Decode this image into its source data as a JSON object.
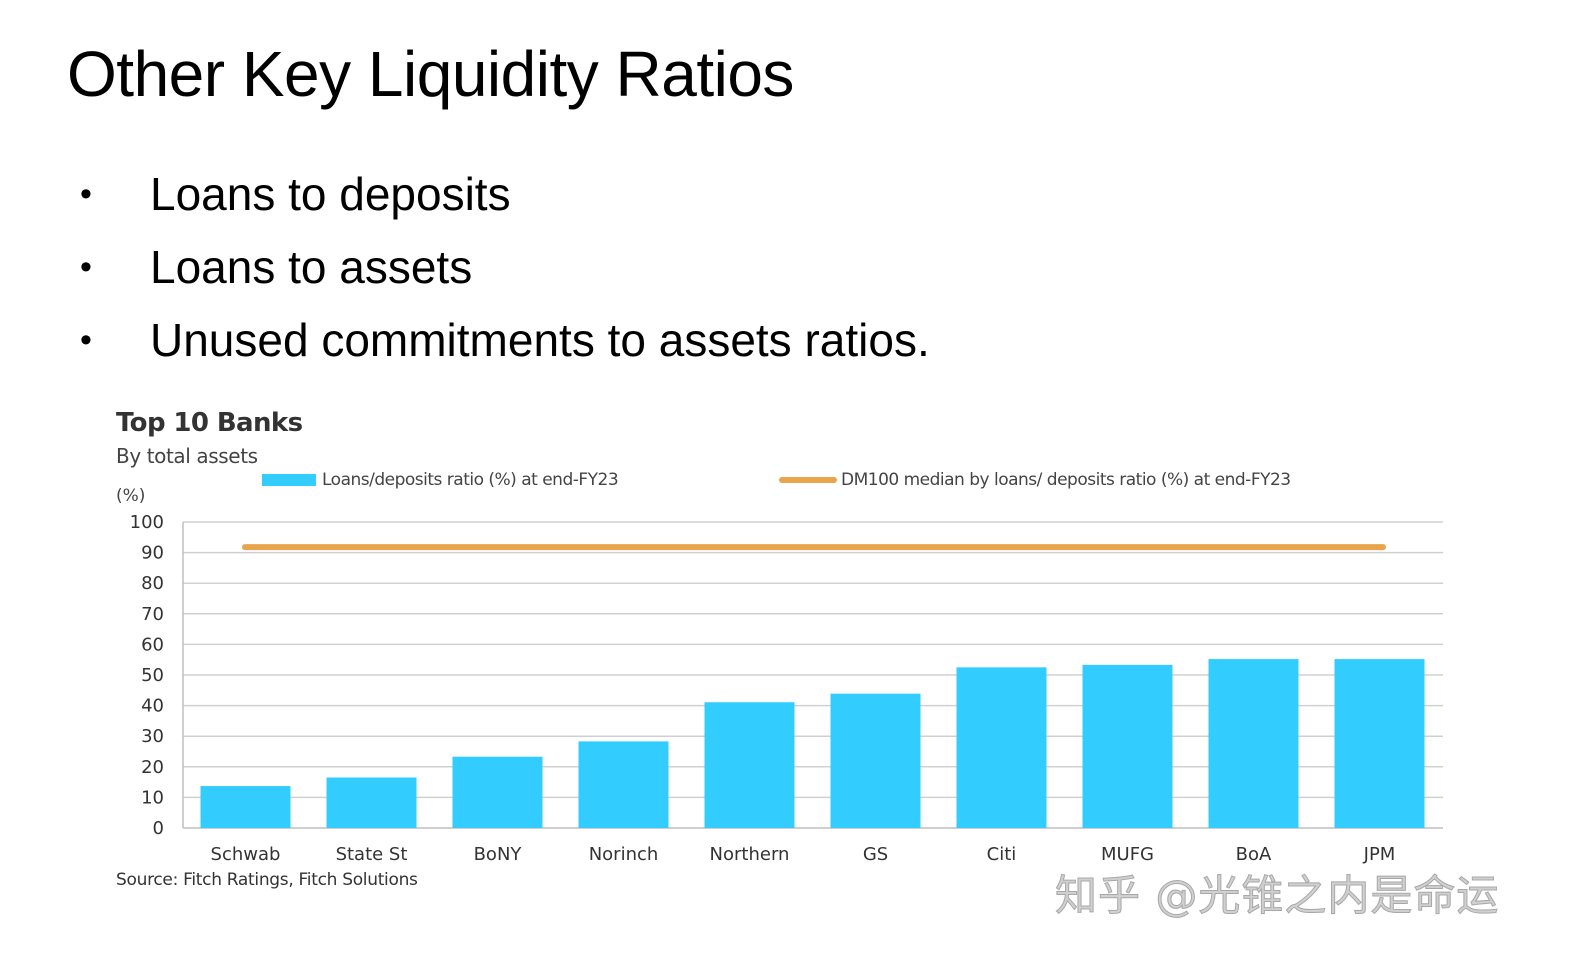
{
  "slide": {
    "title": "Other Key Liquidity Ratios",
    "bullets": [
      {
        "marker": "•",
        "text": "Loans to deposits"
      },
      {
        "marker": "•",
        "text": "Loans to assets"
      },
      {
        "marker": "•",
        "text": "Unused commitments to assets ratios."
      }
    ]
  },
  "chart": {
    "title": "Top 10 Banks",
    "subtitle": "By total assets",
    "unit_label": "(%)",
    "source": "Source: Fitch Ratings, Fitch Solutions",
    "legend": {
      "bars": "Loans/deposits ratio (%) at end-FY23",
      "line": "DM100 median by loans/ deposits ratio (%) at end-FY23"
    },
    "colors": {
      "bar": "#33ccff",
      "line": "#e8a54e",
      "grid": "#d0d0d0",
      "axis": "#bfbfbf"
    }
  },
  "watermark": "知乎 @光锥之内是命运",
  "chart_data": {
    "type": "bar",
    "title": "Top 10 Banks",
    "subtitle": "By total assets",
    "xlabel": "",
    "ylabel": "(%)",
    "ylim": [
      0,
      100
    ],
    "yticks": [
      0,
      10,
      20,
      30,
      40,
      50,
      60,
      70,
      80,
      90,
      100
    ],
    "grid": true,
    "legend_position": "top",
    "categories": [
      "Schwab",
      "State St",
      "BoNY",
      "Norinch",
      "Northern",
      "GS",
      "Citi",
      "MUFG",
      "BoA",
      "JPM"
    ],
    "series": [
      {
        "name": "Loans/deposits ratio (%) at end-FY23",
        "type": "bar",
        "color": "#33ccff",
        "values": [
          13.7,
          16.5,
          23.3,
          28.3,
          41.1,
          43.9,
          52.5,
          53.3,
          55.2,
          55.2
        ]
      },
      {
        "name": "DM100 median by loans/ deposits ratio (%) at end-FY23",
        "type": "line",
        "color": "#e8a54e",
        "values": [
          91.8,
          91.8,
          91.8,
          91.8,
          91.8,
          91.8,
          91.8,
          91.8,
          91.8,
          91.8
        ]
      }
    ],
    "source": "Source: Fitch Ratings, Fitch Solutions"
  }
}
